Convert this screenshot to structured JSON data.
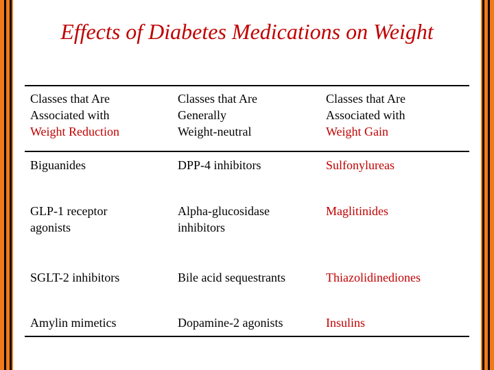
{
  "title": "Effects of Diabetes Medications on Weight",
  "colors": {
    "accent_red": "#c00000",
    "stripe_orange": "#f07a1a",
    "stripe_black": "#000000"
  },
  "headers": [
    {
      "line1": "Classes that Are",
      "line2": "Associated with",
      "line3": "Weight Reduction"
    },
    {
      "line1": "Classes that Are",
      "line2": "Generally",
      "line3": "Weight-neutral"
    },
    {
      "line1": "Classes that Are",
      "line2": "Associated with",
      "line3": "Weight Gain"
    }
  ],
  "rows": [
    {
      "reduction": [
        "Biguanides"
      ],
      "neutral": [
        "DPP-4 inhibitors"
      ],
      "gain": [
        "Sulfonylureas"
      ]
    },
    {
      "reduction": [
        "GLP-1 receptor",
        "agonists"
      ],
      "neutral": [
        "Alpha-glucosidase",
        "inhibitors"
      ],
      "gain": [
        "Maglitinides"
      ]
    },
    {
      "reduction": [
        "SGLT-2 inhibitors"
      ],
      "neutral": [
        "Bile acid sequestrants"
      ],
      "gain": [
        "Thiazolidinediones"
      ]
    },
    {
      "reduction": [
        "Amylin mimetics"
      ],
      "neutral": [
        "Dopamine-2 agonists"
      ],
      "gain": [
        "Insulins"
      ]
    }
  ]
}
